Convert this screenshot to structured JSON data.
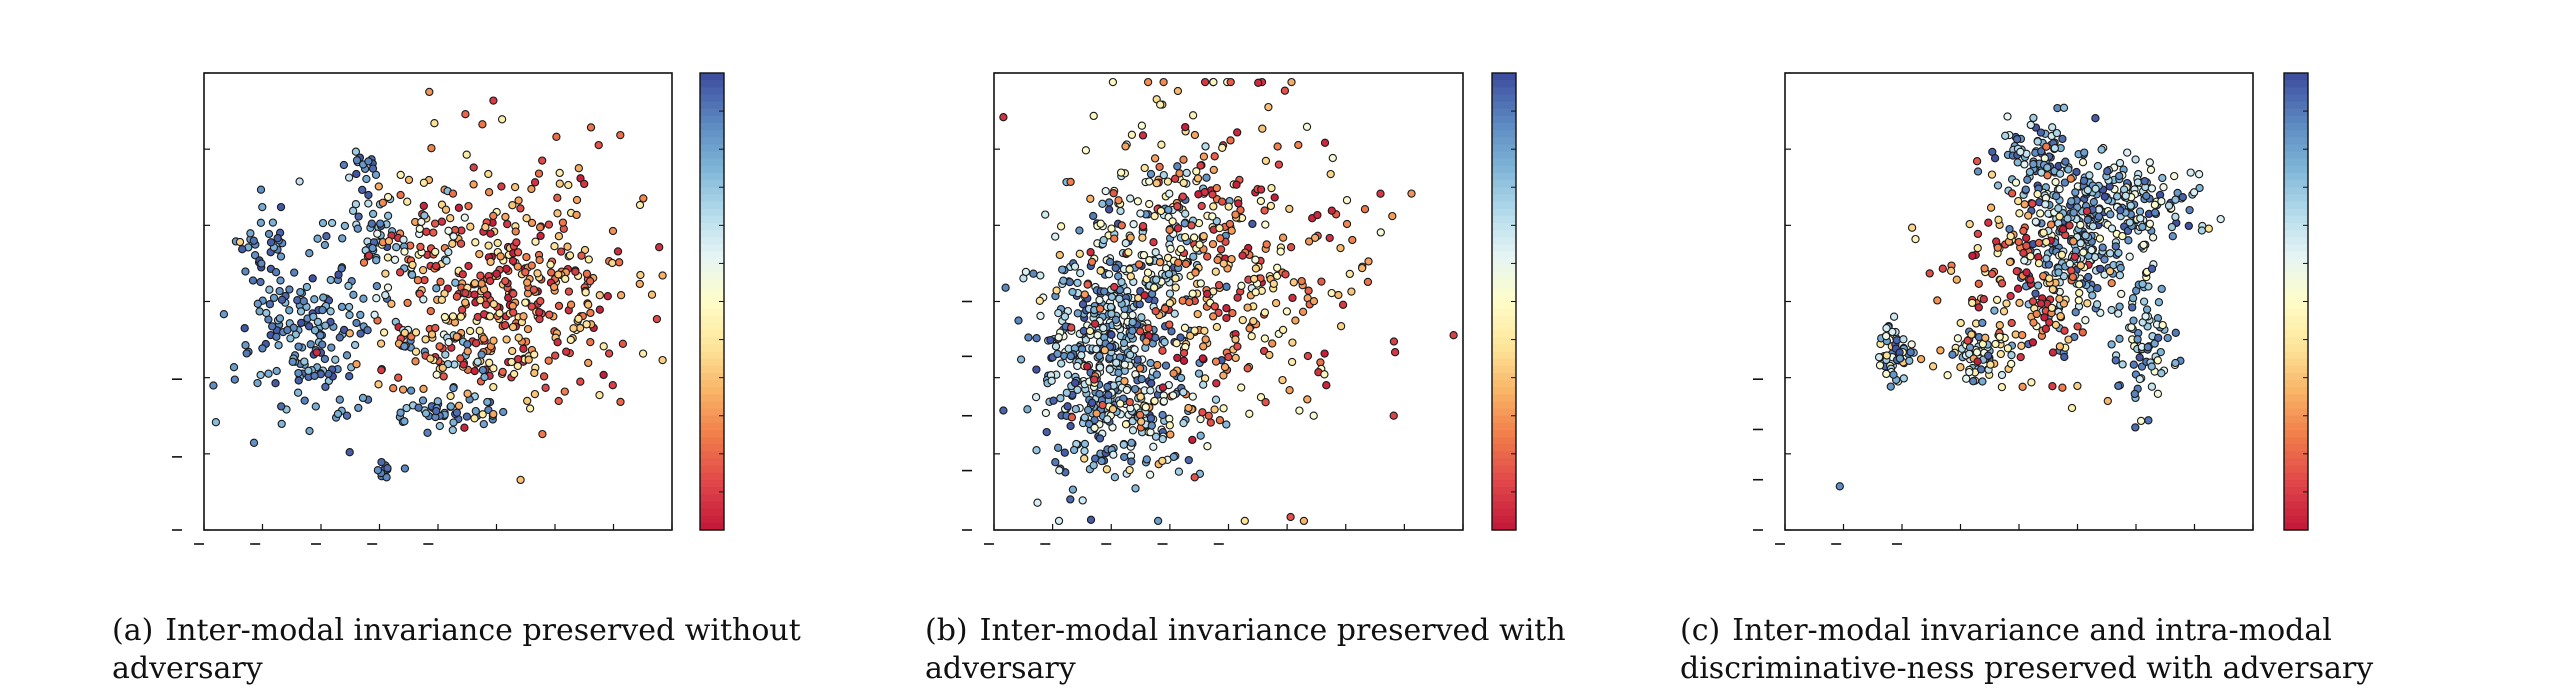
{
  "figure": {
    "captions": [
      {
        "tag": "(a)",
        "text": "Inter-modal invariance preserved without adversary"
      },
      {
        "tag": "(b)",
        "text": "Inter-modal invariance preserved with adversary"
      },
      {
        "tag": "(c)",
        "text": "Inter-modal invariance and intra-modal discriminative-ness preserved with adversary"
      }
    ]
  },
  "colors": {
    "colormap": [
      "#c51b3a",
      "#e0474a",
      "#f07c4a",
      "#f9b467",
      "#fde59a",
      "#fffdc8",
      "#e6f5f5",
      "#b2daea",
      "#7db3d6",
      "#5b87c0",
      "#3f4fa0"
    ]
  },
  "chart_data": [
    {
      "type": "scatter",
      "title": "",
      "xlabel": "",
      "ylabel": "",
      "grid": false,
      "colorbar": true,
      "clusters": [
        {
          "cx": 0.13,
          "cy": 0.4,
          "sx": 0.03,
          "sy": 0.06,
          "n": 35,
          "c": [
            0.8,
            1.0
          ]
        },
        {
          "cx": 0.23,
          "cy": 0.58,
          "sx": 0.08,
          "sy": 0.09,
          "n": 170,
          "c": [
            0.75,
            1.0
          ]
        },
        {
          "cx": 0.34,
          "cy": 0.33,
          "sx": 0.04,
          "sy": 0.06,
          "n": 40,
          "c": [
            0.65,
            1.0
          ]
        },
        {
          "cx": 0.5,
          "cy": 0.73,
          "sx": 0.06,
          "sy": 0.03,
          "n": 45,
          "c": [
            0.7,
            1.0
          ]
        },
        {
          "cx": 0.39,
          "cy": 0.87,
          "sx": 0.012,
          "sy": 0.012,
          "n": 10,
          "c": [
            0.85,
            1.0
          ]
        },
        {
          "cx": 0.33,
          "cy": 0.2,
          "sx": 0.02,
          "sy": 0.01,
          "n": 10,
          "c": [
            0.85,
            1.0
          ]
        },
        {
          "cx": 0.64,
          "cy": 0.48,
          "sx": 0.14,
          "sy": 0.13,
          "n": 420,
          "c": [
            0.0,
            0.45
          ]
        },
        {
          "cx": 0.45,
          "cy": 0.4,
          "sx": 0.05,
          "sy": 0.08,
          "n": 60,
          "c": [
            0.05,
            0.85
          ]
        },
        {
          "cx": 0.5,
          "cy": 0.6,
          "sx": 0.06,
          "sy": 0.04,
          "n": 40,
          "c": [
            0.1,
            0.9
          ]
        }
      ]
    },
    {
      "type": "scatter",
      "title": "",
      "xlabel": "",
      "ylabel": "",
      "grid": false,
      "colorbar": true,
      "clusters": [
        {
          "cx": 0.25,
          "cy": 0.62,
          "sx": 0.075,
          "sy": 0.13,
          "n": 520,
          "c": [
            0.55,
            1.0
          ]
        },
        {
          "cx": 0.36,
          "cy": 0.35,
          "sx": 0.08,
          "sy": 0.1,
          "n": 120,
          "c": [
            0.4,
            1.0
          ]
        },
        {
          "cx": 0.48,
          "cy": 0.42,
          "sx": 0.15,
          "sy": 0.19,
          "n": 380,
          "c": [
            0.0,
            0.55
          ]
        },
        {
          "cx": 0.35,
          "cy": 0.75,
          "sx": 0.08,
          "sy": 0.05,
          "n": 60,
          "c": [
            0.1,
            0.9
          ]
        },
        {
          "cx": 0.79,
          "cy": 0.42,
          "sx": 0.006,
          "sy": 0.01,
          "n": 3,
          "c": [
            0.25,
            0.4
          ]
        },
        {
          "cx": 0.35,
          "cy": 0.06,
          "sx": 0.006,
          "sy": 0.006,
          "n": 3,
          "c": [
            0.05,
            0.95
          ]
        }
      ]
    },
    {
      "type": "scatter",
      "title": "",
      "xlabel": "",
      "ylabel": "",
      "grid": false,
      "colorbar": true,
      "clusters": [
        {
          "cx": 0.23,
          "cy": 0.61,
          "sx": 0.022,
          "sy": 0.035,
          "n": 55,
          "c": [
            0.3,
            1.0
          ]
        },
        {
          "cx": 0.42,
          "cy": 0.62,
          "sx": 0.03,
          "sy": 0.04,
          "n": 70,
          "c": [
            0.3,
            1.0
          ]
        },
        {
          "cx": 0.53,
          "cy": 0.18,
          "sx": 0.04,
          "sy": 0.04,
          "n": 60,
          "c": [
            0.6,
            1.0
          ]
        },
        {
          "cx": 0.62,
          "cy": 0.35,
          "sx": 0.07,
          "sy": 0.1,
          "n": 300,
          "c": [
            0.5,
            1.0
          ]
        },
        {
          "cx": 0.75,
          "cy": 0.29,
          "sx": 0.06,
          "sy": 0.04,
          "n": 120,
          "c": [
            0.5,
            1.0
          ]
        },
        {
          "cx": 0.77,
          "cy": 0.58,
          "sx": 0.03,
          "sy": 0.07,
          "n": 80,
          "c": [
            0.5,
            1.0
          ]
        },
        {
          "cx": 0.52,
          "cy": 0.45,
          "sx": 0.09,
          "sy": 0.12,
          "n": 160,
          "c": [
            0.0,
            0.5
          ]
        },
        {
          "cx": 0.12,
          "cy": 0.9,
          "sx": 0.003,
          "sy": 0.003,
          "n": 1,
          "c": [
            0.85,
            0.9
          ]
        }
      ]
    }
  ]
}
